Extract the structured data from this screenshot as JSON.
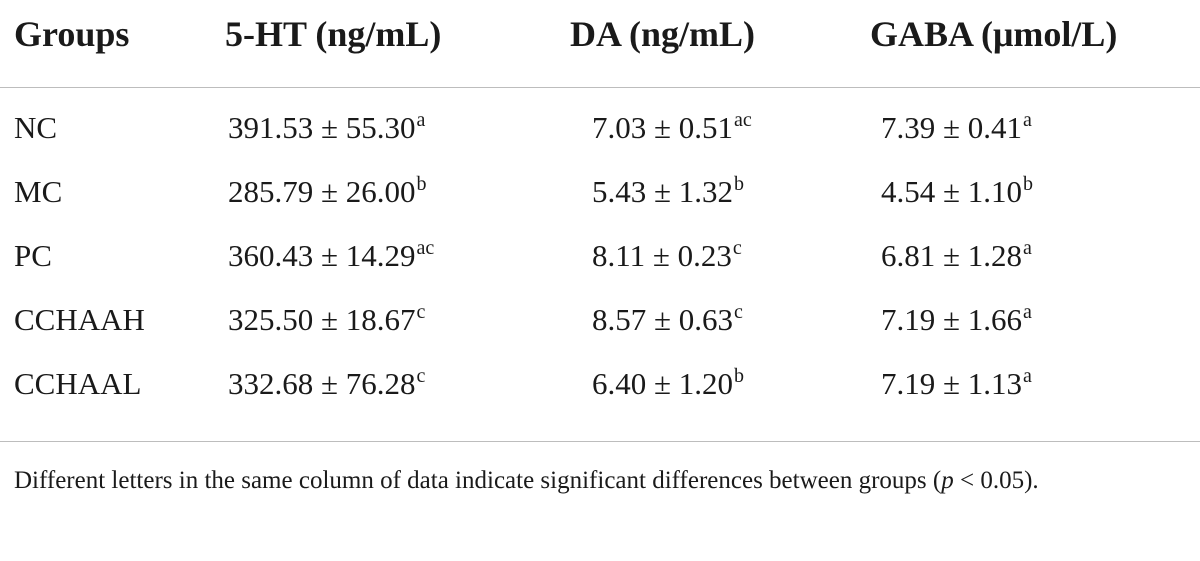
{
  "table": {
    "headers": [
      "Groups",
      "5-HT (ng/mL)",
      "DA (ng/mL)",
      "GABA (μmol/L)"
    ],
    "rows": [
      {
        "group": "NC",
        "ht": {
          "value": "391.53 ± 55.30",
          "sup": "a"
        },
        "da": {
          "value": "7.03 ± 0.51",
          "sup": "ac"
        },
        "gaba": {
          "value": "7.39 ± 0.41",
          "sup": "a"
        }
      },
      {
        "group": "MC",
        "ht": {
          "value": "285.79 ± 26.00",
          "sup": "b"
        },
        "da": {
          "value": "5.43 ± 1.32",
          "sup": "b"
        },
        "gaba": {
          "value": "4.54 ± 1.10",
          "sup": "b"
        }
      },
      {
        "group": "PC",
        "ht": {
          "value": "360.43 ± 14.29",
          "sup": "ac"
        },
        "da": {
          "value": "8.11 ± 0.23",
          "sup": "c"
        },
        "gaba": {
          "value": "6.81 ± 1.28",
          "sup": "a"
        }
      },
      {
        "group": "CCHAAH",
        "ht": {
          "value": "325.50 ± 18.67",
          "sup": "c"
        },
        "da": {
          "value": "8.57 ± 0.63",
          "sup": "c"
        },
        "gaba": {
          "value": "7.19 ± 1.66",
          "sup": "a"
        }
      },
      {
        "group": "CCHAAL",
        "ht": {
          "value": "332.68 ± 76.28",
          "sup": "c"
        },
        "da": {
          "value": "6.40 ± 1.20",
          "sup": "b"
        },
        "gaba": {
          "value": "7.19 ± 1.13",
          "sup": "a"
        }
      }
    ]
  },
  "footnote": {
    "text_before": "Different letters in the same column of data indicate significant differences between groups (",
    "p_symbol": "p",
    "text_after": " < 0.05)."
  },
  "colors": {
    "text": "#1a1a1a",
    "rule": "#bdbdbd",
    "background": "#ffffff"
  }
}
